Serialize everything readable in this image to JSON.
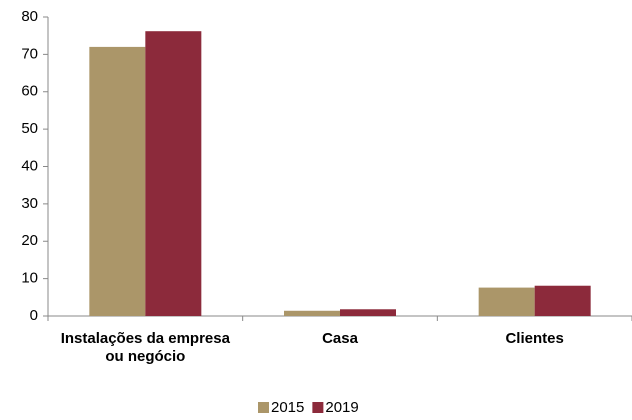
{
  "chart_data": {
    "type": "bar",
    "categories": [
      "Instalações da empresa ou negócio",
      "Casa",
      "Clientes"
    ],
    "series": [
      {
        "name": "2015",
        "color": "#ab9669",
        "values": [
          72,
          1.4,
          7.6
        ]
      },
      {
        "name": "2019",
        "color": "#8c2a3b",
        "values": [
          76.2,
          1.8,
          8.1
        ]
      }
    ],
    "ylim": [
      0,
      80
    ],
    "yticks": [
      0,
      10,
      20,
      30,
      40,
      50,
      60,
      70,
      80
    ],
    "legend": "bottom"
  }
}
